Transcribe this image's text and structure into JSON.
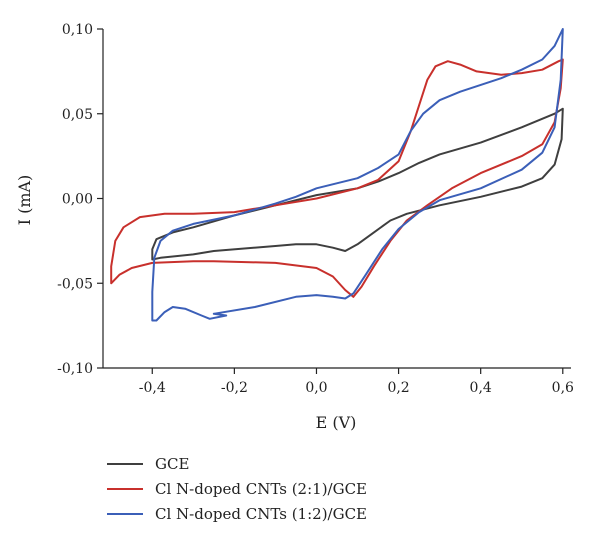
{
  "chart_data": {
    "type": "line",
    "title": "",
    "xlabel": "E (V)",
    "ylabel": "I (mA)",
    "xlim": [
      -0.52,
      0.62
    ],
    "ylim": [
      -0.1,
      0.1
    ],
    "x_ticks": [
      -0.4,
      -0.2,
      0.0,
      0.2,
      0.4,
      0.6
    ],
    "x_tick_labels": [
      "-0,4",
      "-0,2",
      "0,0",
      "0,2",
      "0,4",
      "0,6"
    ],
    "y_ticks": [
      -0.1,
      -0.05,
      0.0,
      0.05,
      0.1
    ],
    "y_tick_labels": [
      "-0,10",
      "-0,05",
      "0,00",
      "0,05",
      "0,10"
    ],
    "grid": false,
    "legend_position": "bottom-left",
    "series": [
      {
        "name": "GCE",
        "color": "#3f3f3f",
        "points": [
          [
            -0.25,
            -0.031
          ],
          [
            -0.1,
            -0.028
          ],
          [
            -0.05,
            -0.027
          ],
          [
            0.0,
            -0.027
          ],
          [
            0.04,
            -0.029
          ],
          [
            0.07,
            -0.031
          ],
          [
            0.1,
            -0.027
          ],
          [
            0.14,
            -0.02
          ],
          [
            0.18,
            -0.013
          ],
          [
            0.22,
            -0.009
          ],
          [
            0.3,
            -0.004
          ],
          [
            0.4,
            0.001
          ],
          [
            0.5,
            0.007
          ],
          [
            0.55,
            0.012
          ],
          [
            0.58,
            0.02
          ],
          [
            0.597,
            0.035
          ],
          [
            0.6,
            0.053
          ],
          [
            0.58,
            0.05
          ],
          [
            0.5,
            0.042
          ],
          [
            0.4,
            0.033
          ],
          [
            0.3,
            0.026
          ],
          [
            0.25,
            0.021
          ],
          [
            0.2,
            0.015
          ],
          [
            0.15,
            0.01
          ],
          [
            0.1,
            0.006
          ],
          [
            0.0,
            0.002
          ],
          [
            -0.1,
            -0.004
          ],
          [
            -0.2,
            -0.01
          ],
          [
            -0.3,
            -0.017
          ],
          [
            -0.35,
            -0.02
          ],
          [
            -0.39,
            -0.024
          ],
          [
            -0.4,
            -0.03
          ],
          [
            -0.4,
            -0.036
          ],
          [
            -0.38,
            -0.035
          ],
          [
            -0.3,
            -0.033
          ],
          [
            -0.25,
            -0.031
          ]
        ]
      },
      {
        "name": "Cl N-doped CNTs (2:1)/GCE",
        "color": "#c8302c",
        "points": [
          [
            -0.25,
            -0.037
          ],
          [
            -0.1,
            -0.038
          ],
          [
            0.0,
            -0.041
          ],
          [
            0.04,
            -0.046
          ],
          [
            0.07,
            -0.054
          ],
          [
            0.09,
            -0.058
          ],
          [
            0.11,
            -0.052
          ],
          [
            0.14,
            -0.04
          ],
          [
            0.18,
            -0.025
          ],
          [
            0.22,
            -0.013
          ],
          [
            0.27,
            -0.004
          ],
          [
            0.33,
            0.006
          ],
          [
            0.4,
            0.015
          ],
          [
            0.5,
            0.025
          ],
          [
            0.55,
            0.032
          ],
          [
            0.58,
            0.045
          ],
          [
            0.595,
            0.065
          ],
          [
            0.6,
            0.082
          ],
          [
            0.59,
            0.081
          ],
          [
            0.55,
            0.076
          ],
          [
            0.5,
            0.074
          ],
          [
            0.45,
            0.073
          ],
          [
            0.39,
            0.075
          ],
          [
            0.35,
            0.079
          ],
          [
            0.32,
            0.081
          ],
          [
            0.29,
            0.078
          ],
          [
            0.27,
            0.07
          ],
          [
            0.25,
            0.055
          ],
          [
            0.23,
            0.04
          ],
          [
            0.2,
            0.022
          ],
          [
            0.15,
            0.011
          ],
          [
            0.1,
            0.006
          ],
          [
            0.0,
            0.0
          ],
          [
            -0.1,
            -0.004
          ],
          [
            -0.2,
            -0.008
          ],
          [
            -0.3,
            -0.009
          ],
          [
            -0.37,
            -0.009
          ],
          [
            -0.43,
            -0.011
          ],
          [
            -0.47,
            -0.017
          ],
          [
            -0.49,
            -0.025
          ],
          [
            -0.5,
            -0.04
          ],
          [
            -0.5,
            -0.05
          ],
          [
            -0.48,
            -0.045
          ],
          [
            -0.45,
            -0.041
          ],
          [
            -0.4,
            -0.038
          ],
          [
            -0.3,
            -0.037
          ],
          [
            -0.25,
            -0.037
          ]
        ]
      },
      {
        "name": "Cl N-doped CNTs (1:2)/GCE",
        "color": "#3b5fb8",
        "points": [
          [
            -0.25,
            -0.068
          ],
          [
            -0.15,
            -0.064
          ],
          [
            -0.05,
            -0.058
          ],
          [
            0.0,
            -0.057
          ],
          [
            0.04,
            -0.058
          ],
          [
            0.07,
            -0.059
          ],
          [
            0.09,
            -0.056
          ],
          [
            0.12,
            -0.045
          ],
          [
            0.16,
            -0.03
          ],
          [
            0.2,
            -0.018
          ],
          [
            0.25,
            -0.008
          ],
          [
            0.3,
            -0.001
          ],
          [
            0.4,
            0.006
          ],
          [
            0.5,
            0.017
          ],
          [
            0.55,
            0.027
          ],
          [
            0.58,
            0.042
          ],
          [
            0.595,
            0.07
          ],
          [
            0.6,
            0.1
          ],
          [
            0.58,
            0.09
          ],
          [
            0.55,
            0.082
          ],
          [
            0.5,
            0.076
          ],
          [
            0.45,
            0.071
          ],
          [
            0.4,
            0.067
          ],
          [
            0.35,
            0.063
          ],
          [
            0.3,
            0.058
          ],
          [
            0.26,
            0.05
          ],
          [
            0.23,
            0.04
          ],
          [
            0.2,
            0.026
          ],
          [
            0.15,
            0.018
          ],
          [
            0.1,
            0.012
          ],
          [
            0.0,
            0.006
          ],
          [
            -0.05,
            0.001
          ],
          [
            -0.1,
            -0.003
          ],
          [
            -0.2,
            -0.01
          ],
          [
            -0.3,
            -0.015
          ],
          [
            -0.35,
            -0.019
          ],
          [
            -0.38,
            -0.025
          ],
          [
            -0.395,
            -0.035
          ],
          [
            -0.4,
            -0.055
          ],
          [
            -0.4,
            -0.072
          ],
          [
            -0.39,
            -0.072
          ],
          [
            -0.37,
            -0.067
          ],
          [
            -0.35,
            -0.064
          ],
          [
            -0.32,
            -0.065
          ],
          [
            -0.28,
            -0.069
          ],
          [
            -0.26,
            -0.071
          ],
          [
            -0.22,
            -0.069
          ],
          [
            -0.25,
            -0.068
          ]
        ]
      }
    ]
  }
}
